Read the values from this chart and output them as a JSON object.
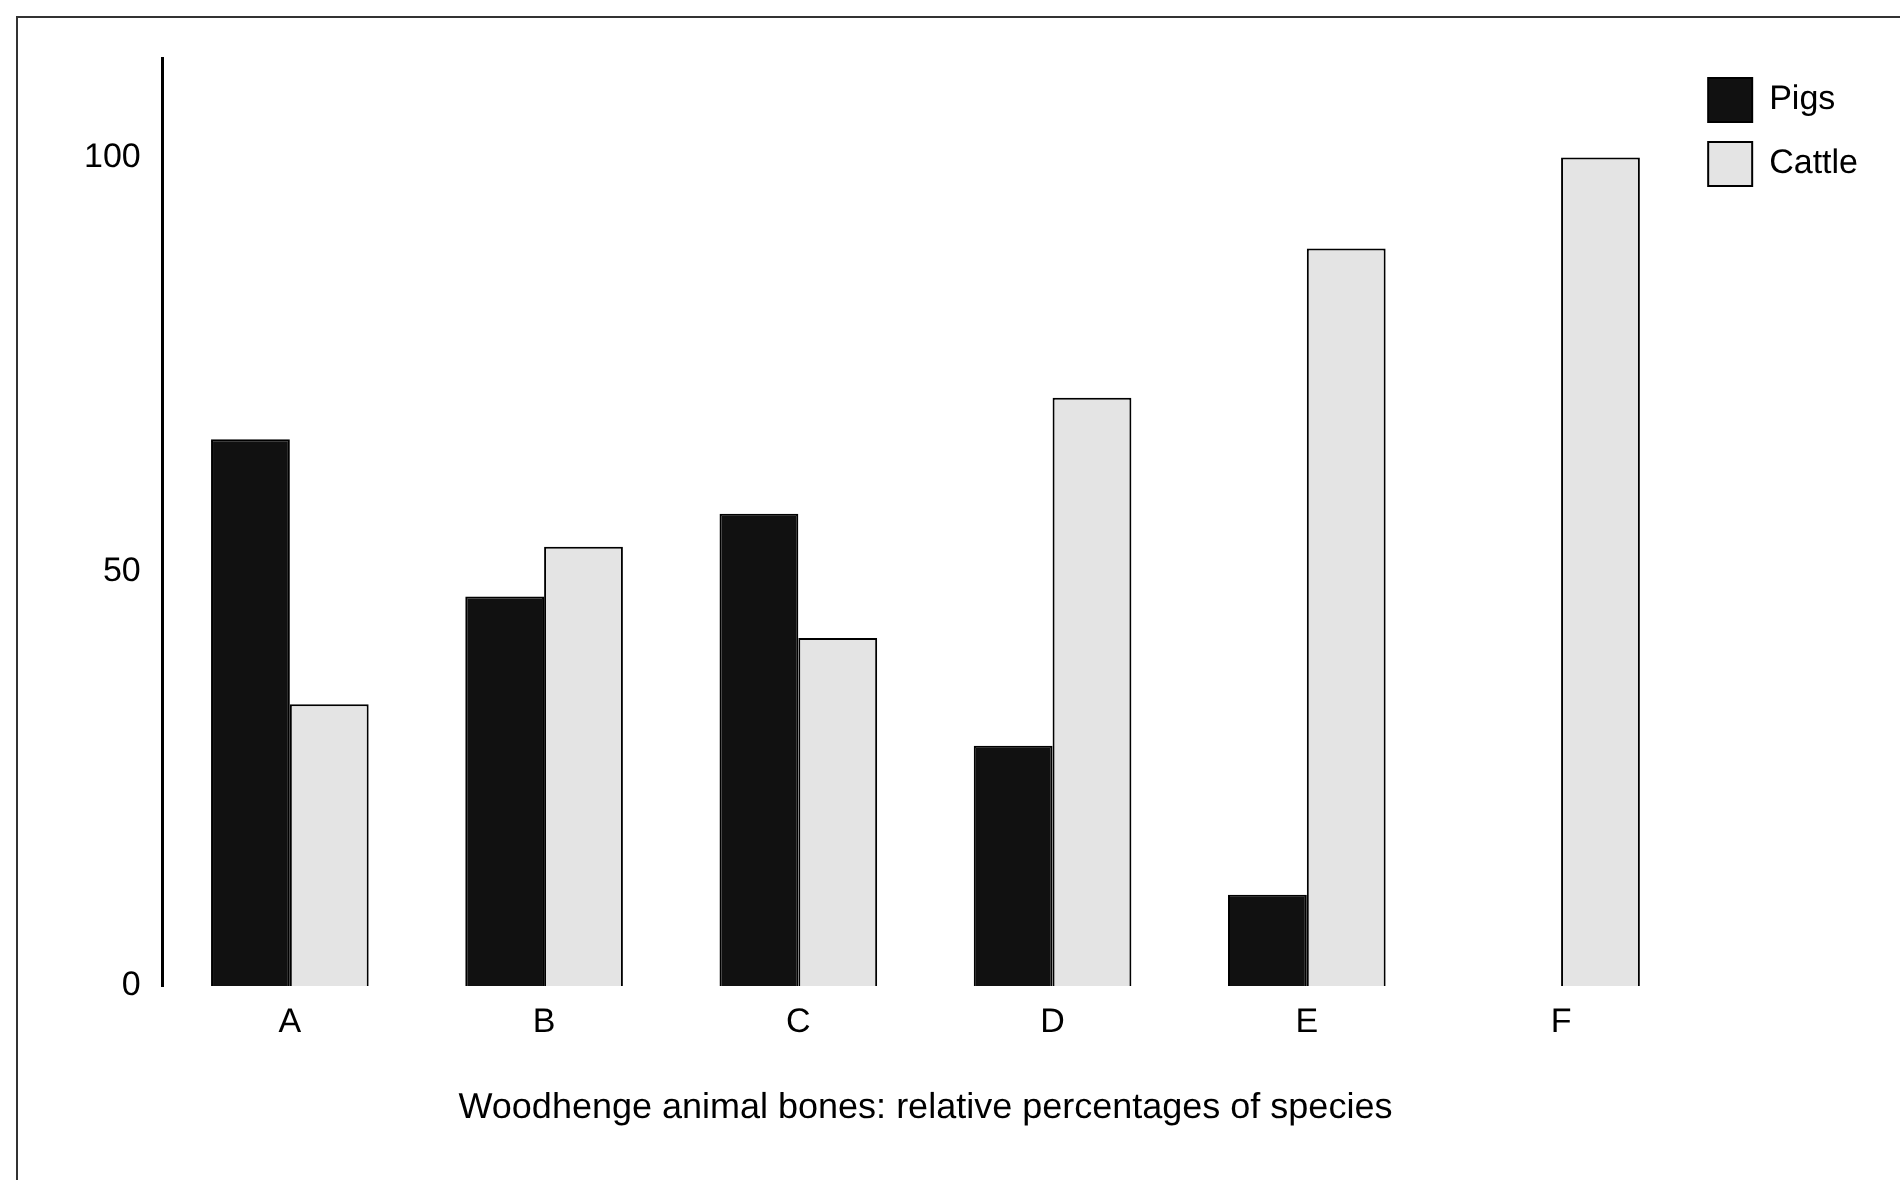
{
  "chart_data": {
    "type": "bar",
    "xlabel": "Woodhenge animal bones: relative percentages of species",
    "categories": [
      "A",
      "B",
      "C",
      "D",
      "E",
      "F"
    ],
    "series": [
      {
        "name": "Pigs",
        "color": "#111111",
        "values": [
          66,
          47,
          57,
          29,
          11,
          0
        ]
      },
      {
        "name": "Cattle",
        "color": "#e4e4e4",
        "values": [
          34,
          53,
          42,
          71,
          89,
          100
        ]
      }
    ],
    "ylim": [
      0,
      112
    ],
    "yticks": [
      0,
      50,
      100
    ],
    "grid": false,
    "legend": "top right"
  }
}
